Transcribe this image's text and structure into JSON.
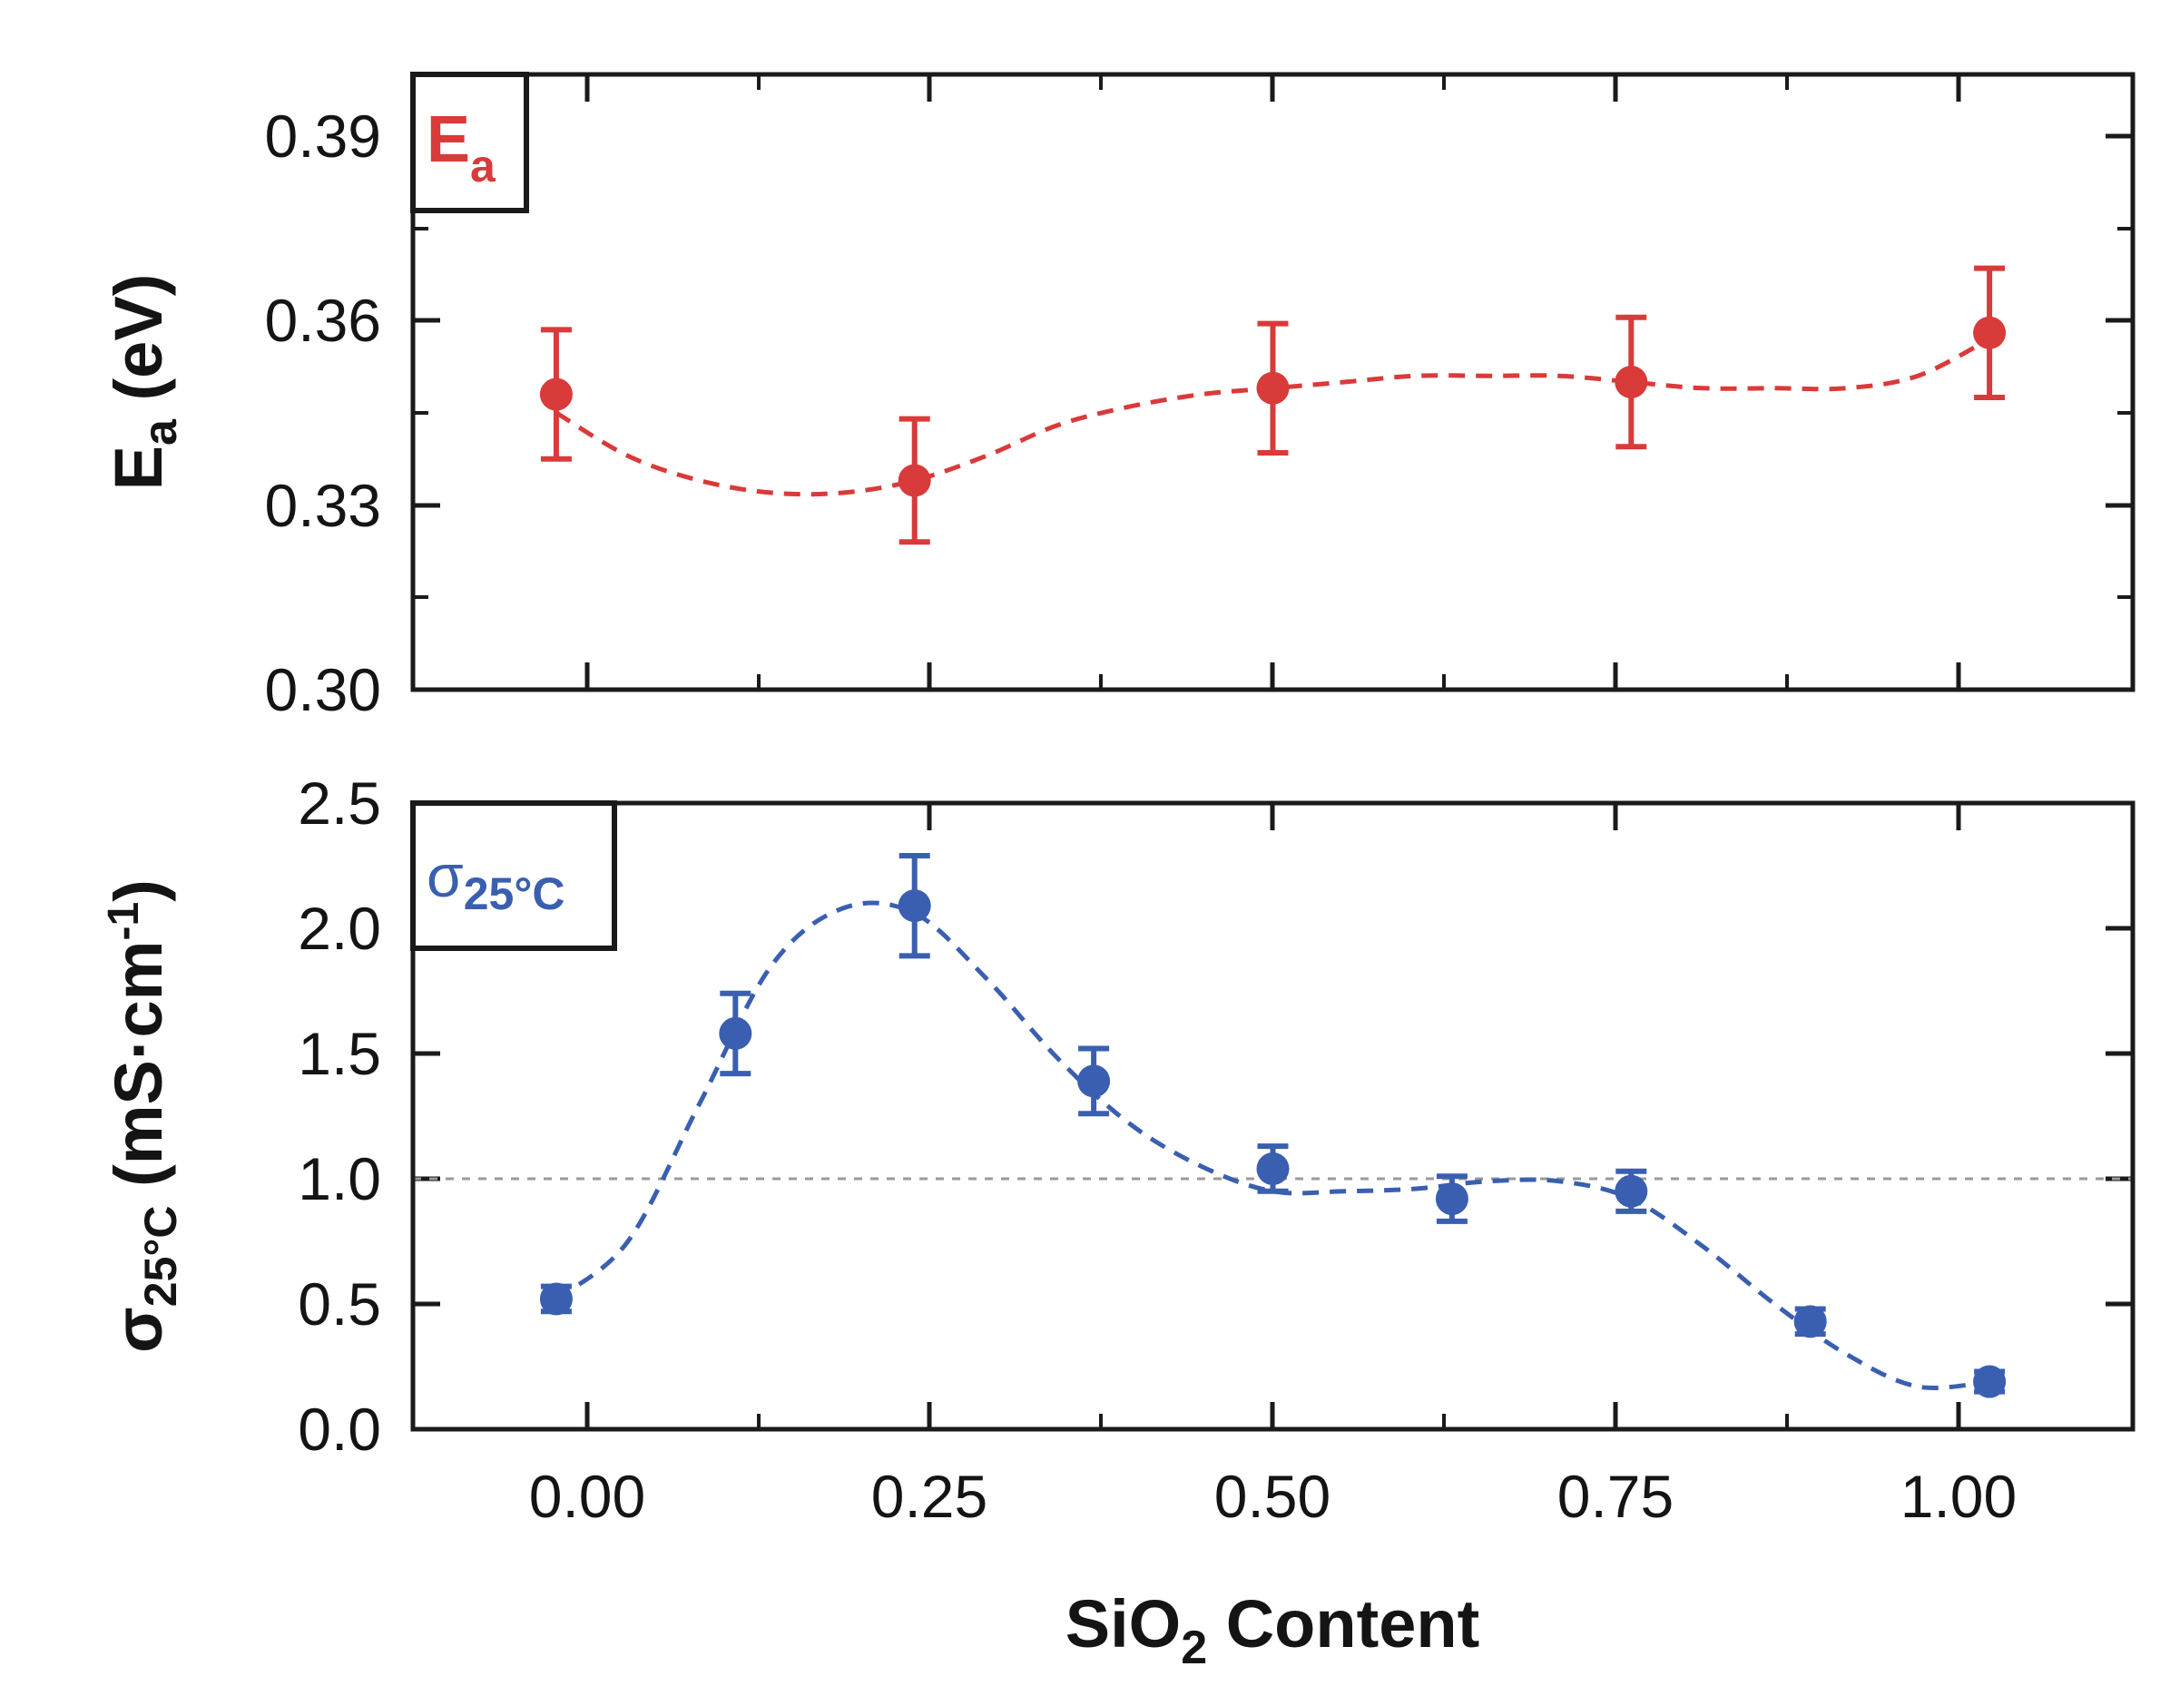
{
  "chart_data": [
    {
      "id": "top",
      "type": "scatter",
      "title": "",
      "xlabel": "",
      "ylabel_main": "E",
      "ylabel_sub": "a",
      "ylabel_unit": " (eV)",
      "legend_main": "E",
      "legend_sub": "a",
      "legend_position": "top-left",
      "color": "#d93a3a",
      "xlim": [
        -0.1,
        1.1
      ],
      "ylim": [
        0.3,
        0.4
      ],
      "yticks": [
        0.3,
        0.33,
        0.36,
        0.39
      ],
      "ytick_labels": [
        "0.30",
        "0.33",
        "0.36",
        "0.39"
      ],
      "x": [
        0.0,
        0.25,
        0.5,
        0.75,
        1.0
      ],
      "y": [
        0.348,
        0.334,
        0.349,
        0.35,
        0.358
      ],
      "yerr": [
        0.0105,
        0.01,
        0.0105,
        0.0105,
        0.0105
      ],
      "trend_x": [
        0.0,
        0.05,
        0.1,
        0.15,
        0.2,
        0.25,
        0.3,
        0.35,
        0.4,
        0.45,
        0.5,
        0.55,
        0.6,
        0.65,
        0.7,
        0.75,
        0.8,
        0.85,
        0.9,
        0.95,
        1.0
      ],
      "trend_y": [
        0.345,
        0.338,
        0.334,
        0.332,
        0.332,
        0.334,
        0.338,
        0.343,
        0.346,
        0.348,
        0.349,
        0.35,
        0.351,
        0.351,
        0.351,
        0.35,
        0.349,
        0.349,
        0.349,
        0.351,
        0.357
      ]
    },
    {
      "id": "bottom",
      "type": "scatter",
      "title": "",
      "xlabel_main": "SiO",
      "xlabel_sub": "2",
      "xlabel_unit": " Content",
      "ylabel_main": "σ",
      "ylabel_sub": "25°C",
      "ylabel_unit": " (mS·cm",
      "ylabel_sup": "-1",
      "ylabel_close": ")",
      "legend_main": "σ",
      "legend_sub": "25°C",
      "legend_position": "top-left",
      "color": "#3a5fb0",
      "reference_line": 1.0,
      "xlim": [
        -0.1,
        1.1
      ],
      "ylim": [
        0.0,
        2.5
      ],
      "yticks": [
        0.0,
        0.5,
        1.0,
        1.5,
        2.0,
        2.5
      ],
      "ytick_labels": [
        "0.0",
        "0.5",
        "1.0",
        "1.5",
        "2.0",
        "2.5"
      ],
      "xticks": [
        0.0,
        0.25,
        0.5,
        0.75,
        1.0
      ],
      "xtick_labels": [
        "0.00",
        "0.25",
        "0.50",
        "0.75",
        "1.00"
      ],
      "x": [
        0.0,
        0.125,
        0.25,
        0.375,
        0.5,
        0.625,
        0.75,
        0.875,
        1.0
      ],
      "y": [
        0.52,
        1.58,
        2.09,
        1.39,
        1.04,
        0.92,
        0.95,
        0.43,
        0.19
      ],
      "yerr": [
        0.05,
        0.16,
        0.2,
        0.13,
        0.09,
        0.09,
        0.08,
        0.05,
        0.04
      ],
      "trend_x": [
        0.0,
        0.05,
        0.1,
        0.15,
        0.2,
        0.25,
        0.3,
        0.35,
        0.4,
        0.45,
        0.5,
        0.55,
        0.6,
        0.65,
        0.7,
        0.75,
        0.8,
        0.85,
        0.9,
        0.95,
        1.0
      ],
      "trend_y": [
        0.52,
        0.75,
        1.3,
        1.85,
        2.08,
        2.06,
        1.8,
        1.48,
        1.22,
        1.05,
        0.95,
        0.95,
        0.96,
        0.99,
        0.99,
        0.92,
        0.73,
        0.5,
        0.3,
        0.17,
        0.19
      ]
    }
  ]
}
